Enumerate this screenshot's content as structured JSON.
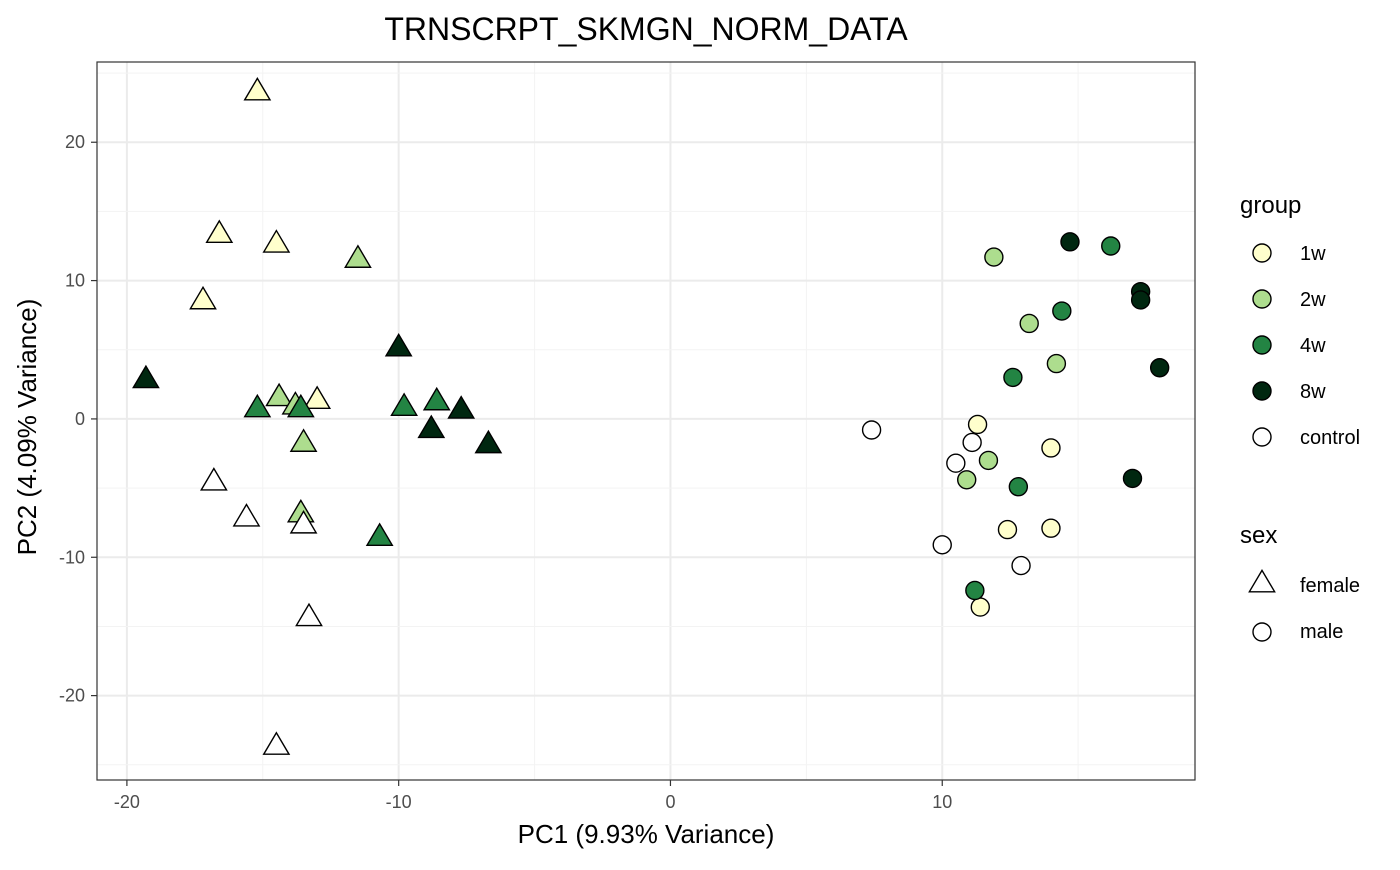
{
  "chart_data": {
    "type": "scatter",
    "title": "TRNSCRPT_SKMGN_NORM_DATA",
    "xlabel": "PC1 (9.93% Variance)",
    "ylabel": "PC2 (4.09% Variance)",
    "xlim": [
      -21.1,
      19.3
    ],
    "ylim": [
      -26.1,
      25.8
    ],
    "xticks": [
      -20,
      -10,
      0,
      10
    ],
    "yticks": [
      -20,
      -10,
      0,
      10,
      20
    ],
    "grid": true,
    "legend_position": "right",
    "legends": [
      {
        "title": "group",
        "entries": [
          {
            "label": "1w",
            "color": "#ffffcc"
          },
          {
            "label": "2w",
            "color": "#addd8e"
          },
          {
            "label": "4w",
            "color": "#238443"
          },
          {
            "label": "8w",
            "color": "#002710"
          },
          {
            "label": "control",
            "color": "#ffffff"
          }
        ]
      },
      {
        "title": "sex",
        "entries": [
          {
            "label": "female",
            "shape": "triangle"
          },
          {
            "label": "male",
            "shape": "circle"
          }
        ]
      }
    ],
    "points": [
      {
        "x": -15.2,
        "y": 23.7,
        "group": "1w",
        "sex": "female"
      },
      {
        "x": -16.6,
        "y": 13.4,
        "group": "1w",
        "sex": "female"
      },
      {
        "x": -14.5,
        "y": 12.7,
        "group": "1w",
        "sex": "female"
      },
      {
        "x": -17.2,
        "y": 8.6,
        "group": "1w",
        "sex": "female"
      },
      {
        "x": -13.0,
        "y": 1.4,
        "group": "1w",
        "sex": "female"
      },
      {
        "x": -11.5,
        "y": 11.6,
        "group": "2w",
        "sex": "female"
      },
      {
        "x": -14.4,
        "y": 1.6,
        "group": "2w",
        "sex": "female"
      },
      {
        "x": -13.8,
        "y": 1.0,
        "group": "2w",
        "sex": "female"
      },
      {
        "x": -13.5,
        "y": -1.7,
        "group": "2w",
        "sex": "female"
      },
      {
        "x": -13.6,
        "y": -6.8,
        "group": "2w",
        "sex": "female"
      },
      {
        "x": -15.2,
        "y": 0.8,
        "group": "4w",
        "sex": "female"
      },
      {
        "x": -13.6,
        "y": 0.8,
        "group": "4w",
        "sex": "female"
      },
      {
        "x": -9.8,
        "y": 0.9,
        "group": "4w",
        "sex": "female"
      },
      {
        "x": -8.6,
        "y": 1.3,
        "group": "4w",
        "sex": "female"
      },
      {
        "x": -10.7,
        "y": -8.5,
        "group": "4w",
        "sex": "female"
      },
      {
        "x": -19.3,
        "y": 2.9,
        "group": "8w",
        "sex": "female"
      },
      {
        "x": -10.0,
        "y": 5.2,
        "group": "8w",
        "sex": "female"
      },
      {
        "x": -8.8,
        "y": -0.7,
        "group": "8w",
        "sex": "female"
      },
      {
        "x": -7.7,
        "y": 0.7,
        "group": "8w",
        "sex": "female"
      },
      {
        "x": -6.7,
        "y": -1.8,
        "group": "8w",
        "sex": "female"
      },
      {
        "x": -16.8,
        "y": -4.5,
        "group": "control",
        "sex": "female"
      },
      {
        "x": -15.6,
        "y": -7.1,
        "group": "control",
        "sex": "female"
      },
      {
        "x": -13.5,
        "y": -7.6,
        "group": "control",
        "sex": "female"
      },
      {
        "x": -13.3,
        "y": -14.3,
        "group": "control",
        "sex": "female"
      },
      {
        "x": -14.5,
        "y": -23.6,
        "group": "control",
        "sex": "female"
      },
      {
        "x": 11.3,
        "y": -0.4,
        "group": "1w",
        "sex": "male"
      },
      {
        "x": 14.0,
        "y": -2.1,
        "group": "1w",
        "sex": "male"
      },
      {
        "x": 12.4,
        "y": -8.0,
        "group": "1w",
        "sex": "male"
      },
      {
        "x": 14.0,
        "y": -7.9,
        "group": "1w",
        "sex": "male"
      },
      {
        "x": 11.4,
        "y": -13.6,
        "group": "1w",
        "sex": "male"
      },
      {
        "x": 11.9,
        "y": 11.7,
        "group": "2w",
        "sex": "male"
      },
      {
        "x": 13.2,
        "y": 6.9,
        "group": "2w",
        "sex": "male"
      },
      {
        "x": 14.2,
        "y": 4.0,
        "group": "2w",
        "sex": "male"
      },
      {
        "x": 11.7,
        "y": -3.0,
        "group": "2w",
        "sex": "male"
      },
      {
        "x": 10.9,
        "y": -4.4,
        "group": "2w",
        "sex": "male"
      },
      {
        "x": 16.2,
        "y": 12.5,
        "group": "4w",
        "sex": "male"
      },
      {
        "x": 14.4,
        "y": 7.8,
        "group": "4w",
        "sex": "male"
      },
      {
        "x": 12.6,
        "y": 3.0,
        "group": "4w",
        "sex": "male"
      },
      {
        "x": 12.8,
        "y": -4.9,
        "group": "4w",
        "sex": "male"
      },
      {
        "x": 11.2,
        "y": -12.4,
        "group": "4w",
        "sex": "male"
      },
      {
        "x": 14.7,
        "y": 12.8,
        "group": "8w",
        "sex": "male"
      },
      {
        "x": 17.3,
        "y": 9.2,
        "group": "8w",
        "sex": "male"
      },
      {
        "x": 17.3,
        "y": 8.6,
        "group": "8w",
        "sex": "male"
      },
      {
        "x": 18.0,
        "y": 3.7,
        "group": "8w",
        "sex": "male"
      },
      {
        "x": 17.0,
        "y": -4.3,
        "group": "8w",
        "sex": "male"
      },
      {
        "x": 7.4,
        "y": -0.8,
        "group": "control",
        "sex": "male"
      },
      {
        "x": 11.1,
        "y": -1.7,
        "group": "control",
        "sex": "male"
      },
      {
        "x": 10.5,
        "y": -3.2,
        "group": "control",
        "sex": "male"
      },
      {
        "x": 10.0,
        "y": -9.1,
        "group": "control",
        "sex": "male"
      },
      {
        "x": 12.9,
        "y": -10.6,
        "group": "control",
        "sex": "male"
      }
    ]
  }
}
